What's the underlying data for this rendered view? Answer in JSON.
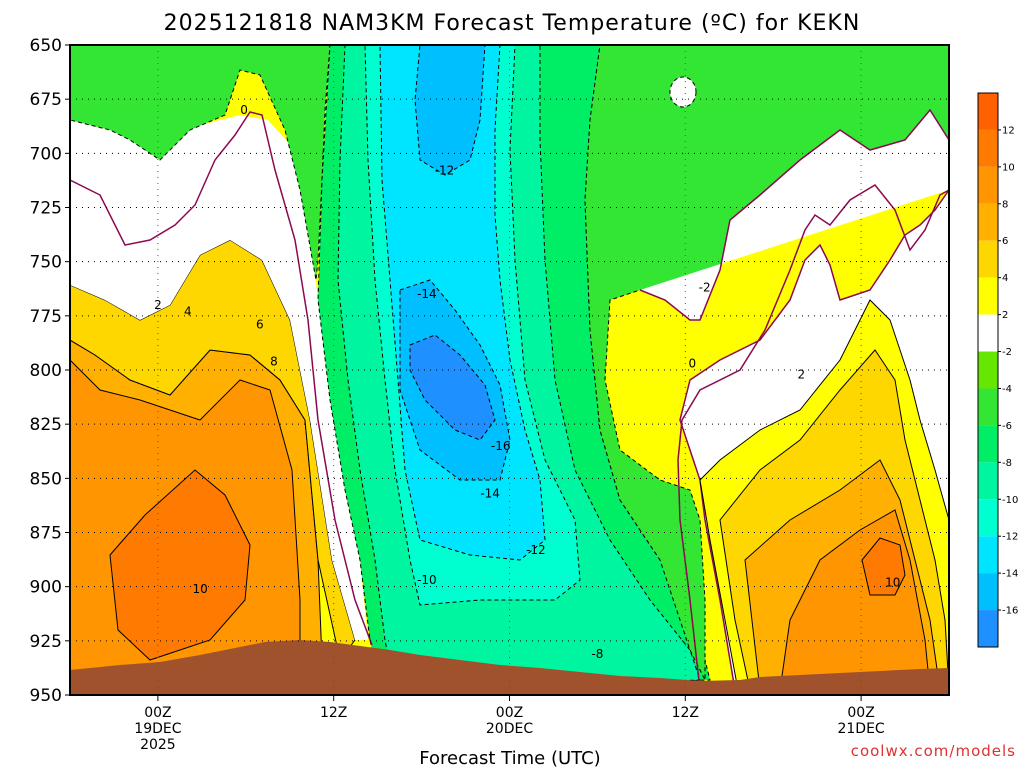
{
  "chart_data": {
    "type": "heatmap",
    "title": "2025121818 NAM3KM Forecast Temperature (ºC) for KEKN",
    "xlabel": "Forecast Time (UTC)",
    "ylabel": "",
    "y_axis": {
      "unit": "hPa",
      "ticks": [
        650,
        675,
        700,
        725,
        750,
        775,
        800,
        825,
        850,
        875,
        900,
        925,
        950
      ],
      "ylim": [
        950,
        650
      ],
      "inverted": true
    },
    "x_axis": {
      "unit": "hours from 2025-12-19 00Z",
      "xlim": [
        -5,
        45
      ],
      "ticks": [
        {
          "hour": 0,
          "lines": [
            "00Z",
            "19DEC",
            "2025"
          ]
        },
        {
          "hour": 10,
          "lines": [
            "12Z"
          ]
        },
        {
          "hour": 20,
          "lines": [
            "00Z",
            "20DEC"
          ]
        },
        {
          "hour": 30,
          "lines": [
            "12Z"
          ]
        },
        {
          "hour": 40,
          "lines": [
            "00Z",
            "21DEC"
          ]
        }
      ]
    },
    "grid": true,
    "colorbar": {
      "placement": "right",
      "levels": [
        -18,
        -16,
        -14,
        -12,
        -10,
        -8,
        -6,
        -4,
        -2,
        2,
        4,
        6,
        8,
        10,
        12,
        14
      ],
      "labels": [
        12,
        10,
        8,
        6,
        4,
        2,
        -2,
        -4,
        -6,
        -8,
        -10,
        -12,
        -14,
        -16
      ],
      "colors": [
        "#1e90ff",
        "#00bfff",
        "#00e5ff",
        "#00ffd0",
        "#00f5a0",
        "#00ee66",
        "#33e633",
        "#66e600",
        "#ffffff",
        "#ffff00",
        "#ffd700",
        "#ffb000",
        "#ff9500",
        "#ff7a00",
        "#ff6000"
      ]
    },
    "ground_color": "#a0522d",
    "contour_labels": [
      {
        "text": "0",
        "hour": 4.9,
        "p": 680
      },
      {
        "text": "2",
        "hour": 0.0,
        "p": 770
      },
      {
        "text": "4",
        "hour": 1.7,
        "p": 773
      },
      {
        "text": "6",
        "hour": 5.8,
        "p": 779
      },
      {
        "text": "8",
        "hour": 6.6,
        "p": 796
      },
      {
        "text": "10",
        "hour": 2.4,
        "p": 901
      },
      {
        "text": "-12",
        "hour": 16.3,
        "p": 708
      },
      {
        "text": "-14",
        "hour": 15.3,
        "p": 765
      },
      {
        "text": "-16",
        "hour": 19.5,
        "p": 835
      },
      {
        "text": "-14",
        "hour": 18.9,
        "p": 857
      },
      {
        "text": "-12",
        "hour": 21.5,
        "p": 883
      },
      {
        "text": "-10",
        "hour": 15.3,
        "p": 897
      },
      {
        "text": "-8",
        "hour": 25.0,
        "p": 931
      },
      {
        "text": "-2",
        "hour": 31.1,
        "p": 762
      },
      {
        "text": "0",
        "hour": 30.4,
        "p": 797
      },
      {
        "text": "2",
        "hour": 36.6,
        "p": 802
      },
      {
        "text": "10",
        "hour": 41.8,
        "p": 898
      }
    ]
  },
  "footer": {
    "credit": "coolwx.com/models"
  }
}
